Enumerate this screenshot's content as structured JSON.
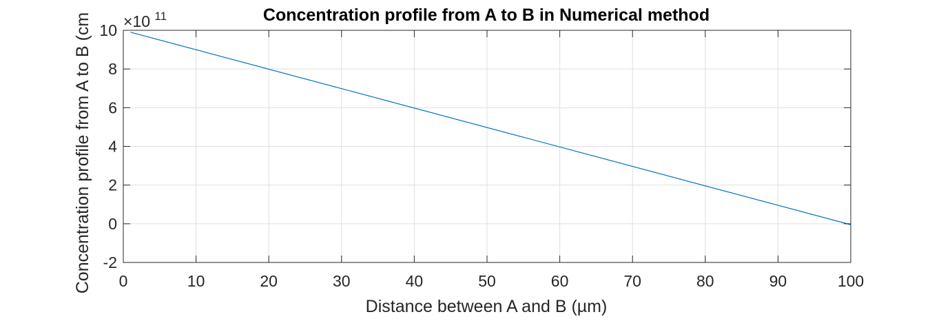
{
  "chart_data": {
    "type": "line",
    "title": "Concentration profile from A to B in Numerical method",
    "xlabel": "Distance between A and B (µm)",
    "ylabel": "Concentration profile from A to B (cm",
    "y_exponent_base": "×10",
    "y_exponent_power": "11",
    "xlim": [
      0,
      100
    ],
    "ylim": [
      -2,
      10
    ],
    "x_ticks": [
      0,
      10,
      20,
      30,
      40,
      50,
      60,
      70,
      80,
      90,
      100
    ],
    "y_ticks": [
      -2,
      0,
      2,
      4,
      6,
      8,
      10
    ],
    "grid": true,
    "line_color": "#0072bd",
    "series": [
      {
        "x": [
          1,
          100
        ],
        "y": [
          9.9,
          -0.05
        ]
      }
    ]
  }
}
